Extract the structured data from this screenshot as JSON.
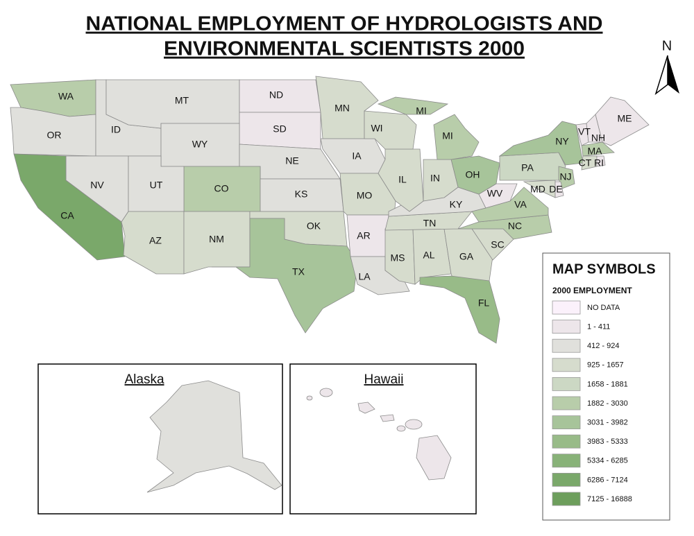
{
  "title_lines": [
    "NATIONAL EMPLOYMENT OF HYDROLOGISTS AND",
    "ENVIRONMENTAL SCIENTISTS 2000"
  ],
  "north": "N",
  "states": [
    {
      "label": "WA",
      "color": "#b8cdaa"
    },
    {
      "label": "OR",
      "color": "#e0e0dc"
    },
    {
      "label": "ID",
      "color": "#e0e0dc"
    },
    {
      "label": "MT",
      "color": "#e0e0dc"
    },
    {
      "label": "ND",
      "color": "#ede6ea"
    },
    {
      "label": "SD",
      "color": "#ede6ea"
    },
    {
      "label": "WY",
      "color": "#e0e0dc"
    },
    {
      "label": "NE",
      "color": "#e0e0dc"
    },
    {
      "label": "CO",
      "color": "#b8cdaa"
    },
    {
      "label": "KS",
      "color": "#e0e0dc"
    },
    {
      "label": "NV",
      "color": "#e0e0dc"
    },
    {
      "label": "UT",
      "color": "#e0e0dc"
    },
    {
      "label": "CA",
      "color": "#7aa86a"
    },
    {
      "label": "AZ",
      "color": "#d6dccd"
    },
    {
      "label": "NM",
      "color": "#d6dccd"
    },
    {
      "label": "OK",
      "color": "#d6dccd"
    },
    {
      "label": "TX",
      "color": "#a7c49a"
    },
    {
      "label": "MN",
      "color": "#d6dccd"
    },
    {
      "label": "IA",
      "color": "#e0e0dc"
    },
    {
      "label": "MO",
      "color": "#d6dccd"
    },
    {
      "label": "AR",
      "color": "#ede6ea"
    },
    {
      "label": "LA",
      "color": "#e0e0dc"
    },
    {
      "label": "MS",
      "color": "#d6dccd"
    },
    {
      "label": "AL",
      "color": "#d6dccd"
    },
    {
      "label": "GA",
      "color": "#d6dccd"
    },
    {
      "label": "FL",
      "color": "#98bb88"
    },
    {
      "label": "SC",
      "color": "#d6dccd"
    },
    {
      "label": "NC",
      "color": "#b8cdaa"
    },
    {
      "label": "TN",
      "color": "#d6dccd"
    },
    {
      "label": "KY",
      "color": "#e0e0dc"
    },
    {
      "label": "WV",
      "color": "#ede6ea"
    },
    {
      "label": "VA",
      "color": "#b8cdaa"
    },
    {
      "label": "OH",
      "color": "#a7c49a"
    },
    {
      "label": "IN",
      "color": "#d6dccd"
    },
    {
      "label": "IL",
      "color": "#d6dccd"
    },
    {
      "label": "WI",
      "color": "#d6dccd"
    },
    {
      "label": "MI",
      "color": "#b8cdaa"
    },
    {
      "label": "MI",
      "color": "#b8cdaa"
    },
    {
      "label": "PA",
      "color": "#ccd8c4"
    },
    {
      "label": "NY",
      "color": "#a7c49a"
    },
    {
      "label": "NJ",
      "color": "#b8cdaa"
    },
    {
      "label": "MD",
      "color": "#d6dccd"
    },
    {
      "label": "DE",
      "color": "#ede6ea"
    },
    {
      "label": "VT",
      "color": "#ede6ea"
    },
    {
      "label": "NH",
      "color": "#ede6ea"
    },
    {
      "label": "ME",
      "color": "#ede6ea"
    },
    {
      "label": "MA",
      "color": "#b8cdaa"
    },
    {
      "label": "CT",
      "color": "#d6dccd"
    },
    {
      "label": "RI",
      "color": "#ede6ea"
    }
  ],
  "insets": [
    {
      "title": "Alaska",
      "color": "#e0e0dc"
    },
    {
      "title": "Hawaii",
      "color": "#ede6ea"
    }
  ],
  "legend": {
    "title": "MAP SYMBOLS",
    "subtitle": "2000 EMPLOYMENT",
    "classes": [
      {
        "label": "NO DATA",
        "color": "#fbf1fb"
      },
      {
        "label": "1 - 411",
        "color": "#ede6ea"
      },
      {
        "label": "412 - 924",
        "color": "#e0e0dc"
      },
      {
        "label": "925 - 1657",
        "color": "#d6dccd"
      },
      {
        "label": "1658 - 1881",
        "color": "#ccd8c4"
      },
      {
        "label": "1882 - 3030",
        "color": "#b8cdaa"
      },
      {
        "label": "3031 - 3982",
        "color": "#a7c49a"
      },
      {
        "label": "3983 - 5333",
        "color": "#98bb88"
      },
      {
        "label": "5334 - 6285",
        "color": "#88b278"
      },
      {
        "label": "6286 - 7124",
        "color": "#7aa86a"
      },
      {
        "label": "7125 - 16888",
        "color": "#6d9e5c"
      }
    ]
  }
}
